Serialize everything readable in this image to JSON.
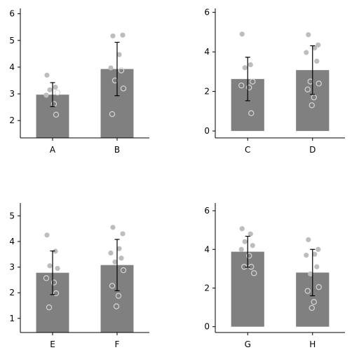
{
  "chart_data": [
    {
      "type": "bar",
      "categories": [
        "A",
        "B"
      ],
      "values": [
        2.97,
        3.93
      ],
      "errors": [
        0.45,
        1.0
      ],
      "ylim": [
        1.35,
        6.2
      ],
      "yticks": [
        2,
        3,
        4,
        5,
        6
      ],
      "points": [
        [
          {
            "y": 3.7,
            "open": false
          },
          {
            "y": 3.25,
            "open": false
          },
          {
            "y": 3.15,
            "open": false
          },
          {
            "y": 3.05,
            "open": true
          },
          {
            "y": 2.95,
            "open": false
          },
          {
            "y": 2.62,
            "open": true
          },
          {
            "y": 2.22,
            "open": true
          }
        ],
        [
          {
            "y": 5.17,
            "open": false
          },
          {
            "y": 5.2,
            "open": false
          },
          {
            "y": 4.47,
            "open": false
          },
          {
            "y": 3.97,
            "open": false
          },
          {
            "y": 3.88,
            "open": true
          },
          {
            "y": 3.5,
            "open": true
          },
          {
            "y": 3.2,
            "open": true
          },
          {
            "y": 2.24,
            "open": true
          }
        ]
      ]
    },
    {
      "type": "bar",
      "categories": [
        "C",
        "D"
      ],
      "values": [
        2.63,
        3.08
      ],
      "errors": [
        1.1,
        1.23
      ],
      "ylim": [
        -0.35,
        6.2
      ],
      "yticks": [
        0,
        2,
        4,
        6
      ],
      "points": [
        [
          {
            "y": 4.9,
            "open": false
          },
          {
            "y": 3.35,
            "open": false
          },
          {
            "y": 3.2,
            "open": false
          },
          {
            "y": 2.5,
            "open": true
          },
          {
            "y": 2.3,
            "open": true
          },
          {
            "y": 2.2,
            "open": true
          },
          {
            "y": 0.9,
            "open": true
          }
        ],
        [
          {
            "y": 4.87,
            "open": false
          },
          {
            "y": 4.35,
            "open": false
          },
          {
            "y": 4.2,
            "open": false
          },
          {
            "y": 3.97,
            "open": false
          },
          {
            "y": 3.53,
            "open": false
          },
          {
            "y": 2.5,
            "open": true
          },
          {
            "y": 2.4,
            "open": true
          },
          {
            "y": 2.1,
            "open": true
          },
          {
            "y": 1.7,
            "open": true
          },
          {
            "y": 1.3,
            "open": true
          }
        ]
      ]
    },
    {
      "type": "bar",
      "categories": [
        "E",
        "F"
      ],
      "values": [
        2.78,
        3.08
      ],
      "errors": [
        0.85,
        1.0
      ],
      "ylim": [
        0.45,
        5.5
      ],
      "yticks": [
        1,
        2,
        3,
        4,
        5
      ],
      "points": [
        [
          {
            "y": 4.25,
            "open": false
          },
          {
            "y": 3.62,
            "open": false
          },
          {
            "y": 3.05,
            "open": false
          },
          {
            "y": 2.95,
            "open": false
          },
          {
            "y": 2.57,
            "open": true
          },
          {
            "y": 2.4,
            "open": true
          },
          {
            "y": 1.98,
            "open": true
          },
          {
            "y": 1.43,
            "open": true
          }
        ],
        [
          {
            "y": 4.55,
            "open": false
          },
          {
            "y": 4.3,
            "open": false
          },
          {
            "y": 3.72,
            "open": false
          },
          {
            "y": 3.55,
            "open": false
          },
          {
            "y": 3.35,
            "open": false
          },
          {
            "y": 3.2,
            "open": false
          },
          {
            "y": 2.88,
            "open": true
          },
          {
            "y": 2.27,
            "open": true
          },
          {
            "y": 1.88,
            "open": true
          },
          {
            "y": 1.47,
            "open": true
          }
        ]
      ]
    },
    {
      "type": "bar",
      "categories": [
        "G",
        "H"
      ],
      "values": [
        3.88,
        2.8
      ],
      "errors": [
        0.8,
        1.2
      ],
      "ylim": [
        -0.3,
        6.4
      ],
      "yticks": [
        0,
        2,
        4,
        6
      ],
      "points": [
        [
          {
            "y": 5.07,
            "open": false
          },
          {
            "y": 4.8,
            "open": false
          },
          {
            "y": 4.4,
            "open": false
          },
          {
            "y": 4.2,
            "open": false
          },
          {
            "y": 4.0,
            "open": false
          },
          {
            "y": 3.67,
            "open": true
          },
          {
            "y": 3.1,
            "open": true
          },
          {
            "y": 3.1,
            "open": true
          },
          {
            "y": 2.77,
            "open": true
          }
        ],
        [
          {
            "y": 4.5,
            "open": false
          },
          {
            "y": 4.0,
            "open": false
          },
          {
            "y": 3.75,
            "open": false
          },
          {
            "y": 3.7,
            "open": false
          },
          {
            "y": 3.1,
            "open": false
          },
          {
            "y": 2.73,
            "open": false
          },
          {
            "y": 2.05,
            "open": true
          },
          {
            "y": 1.85,
            "open": true
          },
          {
            "y": 1.28,
            "open": true
          },
          {
            "y": 0.97,
            "open": true
          }
        ]
      ]
    }
  ]
}
